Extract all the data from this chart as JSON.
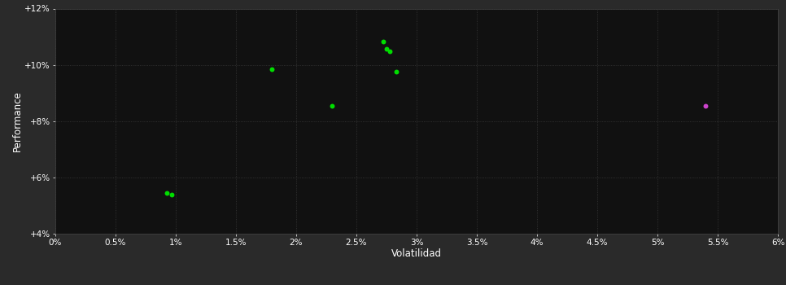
{
  "background_color": "#2a2a2a",
  "plot_bg_color": "#111111",
  "grid_color": "#3a3a3a",
  "xlabel": "Volatilidad",
  "ylabel": "Performance",
  "xlim": [
    0.0,
    0.06
  ],
  "ylim": [
    0.04,
    0.12
  ],
  "xtick_values": [
    0.0,
    0.005,
    0.01,
    0.015,
    0.02,
    0.025,
    0.03,
    0.035,
    0.04,
    0.045,
    0.05,
    0.055,
    0.06
  ],
  "ytick_values": [
    0.04,
    0.06,
    0.08,
    0.1,
    0.12
  ],
  "green_points": [
    [
      0.0093,
      0.0545
    ],
    [
      0.0097,
      0.0538
    ],
    [
      0.018,
      0.0985
    ],
    [
      0.023,
      0.0855
    ],
    [
      0.0272,
      0.1082
    ],
    [
      0.0275,
      0.1058
    ],
    [
      0.0278,
      0.1048
    ],
    [
      0.0283,
      0.0977
    ]
  ],
  "magenta_points": [
    [
      0.054,
      0.0855
    ]
  ],
  "point_size": 18,
  "green_color": "#00dd00",
  "magenta_color": "#cc44cc",
  "tick_color": "#ffffff",
  "label_color": "#ffffff",
  "tick_fontsize": 7.5,
  "label_fontsize": 8.5
}
